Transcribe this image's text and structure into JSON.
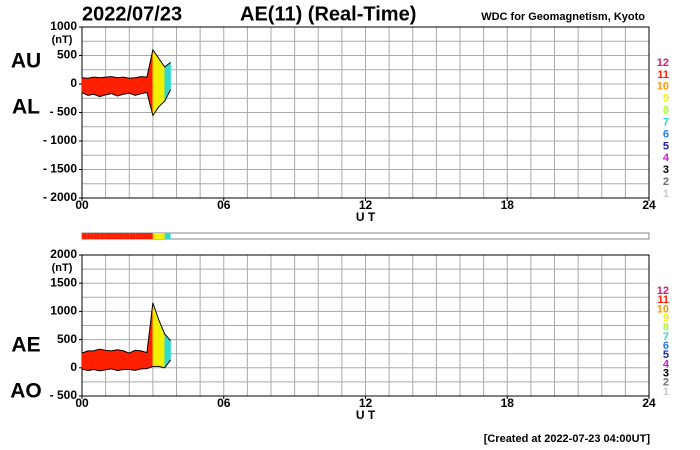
{
  "header": {
    "date": "2022/07/23",
    "title": "AE(11) (Real-Time)",
    "source": "WDC for Geomagnetism, Kyoto"
  },
  "footer": "[Created at 2022-07-23 04:00UT]",
  "station_scale": {
    "counts": [
      12,
      11,
      10,
      9,
      8,
      7,
      6,
      5,
      4,
      3,
      2,
      1
    ],
    "colors": [
      "#e8186e",
      "#ff2000",
      "#ff9a00",
      "#f0f000",
      "#a8ff30",
      "#30d8d0",
      "#2080ff",
      "#2020a8",
      "#c820c8",
      "#000000",
      "#707070",
      "#c8c8c8"
    ]
  },
  "chart_data": [
    {
      "type": "range",
      "upper_name": "AU",
      "lower_name": "AL",
      "y_unit": "(nT)",
      "x_label": "U T",
      "x": [
        0,
        0.25,
        0.5,
        0.75,
        1,
        1.25,
        1.5,
        1.75,
        2,
        2.25,
        2.5,
        2.75,
        3,
        3.25,
        3.5,
        3.75
      ],
      "upper": [
        110,
        100,
        120,
        110,
        120,
        130,
        110,
        120,
        100,
        110,
        130,
        120,
        600,
        450,
        300,
        380
      ],
      "lower": [
        -150,
        -200,
        -180,
        -220,
        -190,
        -170,
        -210,
        -180,
        -160,
        -200,
        -170,
        -150,
        -550,
        -400,
        -300,
        -100
      ],
      "stations": [
        11,
        11,
        11,
        11,
        11,
        11,
        11,
        11,
        11,
        11,
        11,
        11,
        9,
        9,
        7,
        6
      ],
      "xlim": [
        0,
        24
      ],
      "xticks": [
        {
          "value": 0,
          "label": "00"
        },
        {
          "value": 6,
          "label": "06"
        },
        12,
        18,
        24
      ],
      "ylim": [
        -2000,
        1000
      ],
      "yticks": [
        1000,
        500,
        0,
        {
          "value": -500,
          "label": "- 500"
        },
        {
          "value": -1000,
          "label": "- 1000"
        },
        {
          "value": -1500,
          "label": "- 1500"
        },
        {
          "value": -2000,
          "label": "- 2000"
        }
      ],
      "grid": {
        "x": 1,
        "y": 250
      }
    },
    {
      "type": "range",
      "upper_name": "AE",
      "lower_name": "AO",
      "y_unit": "(nT)",
      "x_label": "U T",
      "x": [
        0,
        0.25,
        0.5,
        0.75,
        1,
        1.25,
        1.5,
        1.75,
        2,
        2.25,
        2.5,
        2.75,
        3,
        3.25,
        3.5,
        3.75
      ],
      "upper": [
        260,
        300,
        300,
        330,
        310,
        300,
        320,
        300,
        260,
        310,
        300,
        270,
        1150,
        850,
        600,
        480
      ],
      "lower": [
        -20,
        -50,
        -30,
        -55,
        -35,
        -20,
        -50,
        -30,
        -30,
        -45,
        -20,
        -15,
        25,
        25,
        0,
        140
      ],
      "stations": [
        11,
        11,
        11,
        11,
        11,
        11,
        11,
        11,
        11,
        11,
        11,
        11,
        9,
        9,
        7,
        6
      ],
      "xlim": [
        0,
        24
      ],
      "xticks": [
        {
          "value": 0,
          "label": "00"
        },
        {
          "value": 6,
          "label": "06"
        },
        12,
        18,
        24
      ],
      "ylim": [
        -500,
        2000
      ],
      "yticks": [
        2000,
        1500,
        1000,
        500,
        0,
        {
          "value": -500,
          "label": "- 500"
        }
      ],
      "grid": {
        "x": 1,
        "y": 250
      }
    }
  ]
}
